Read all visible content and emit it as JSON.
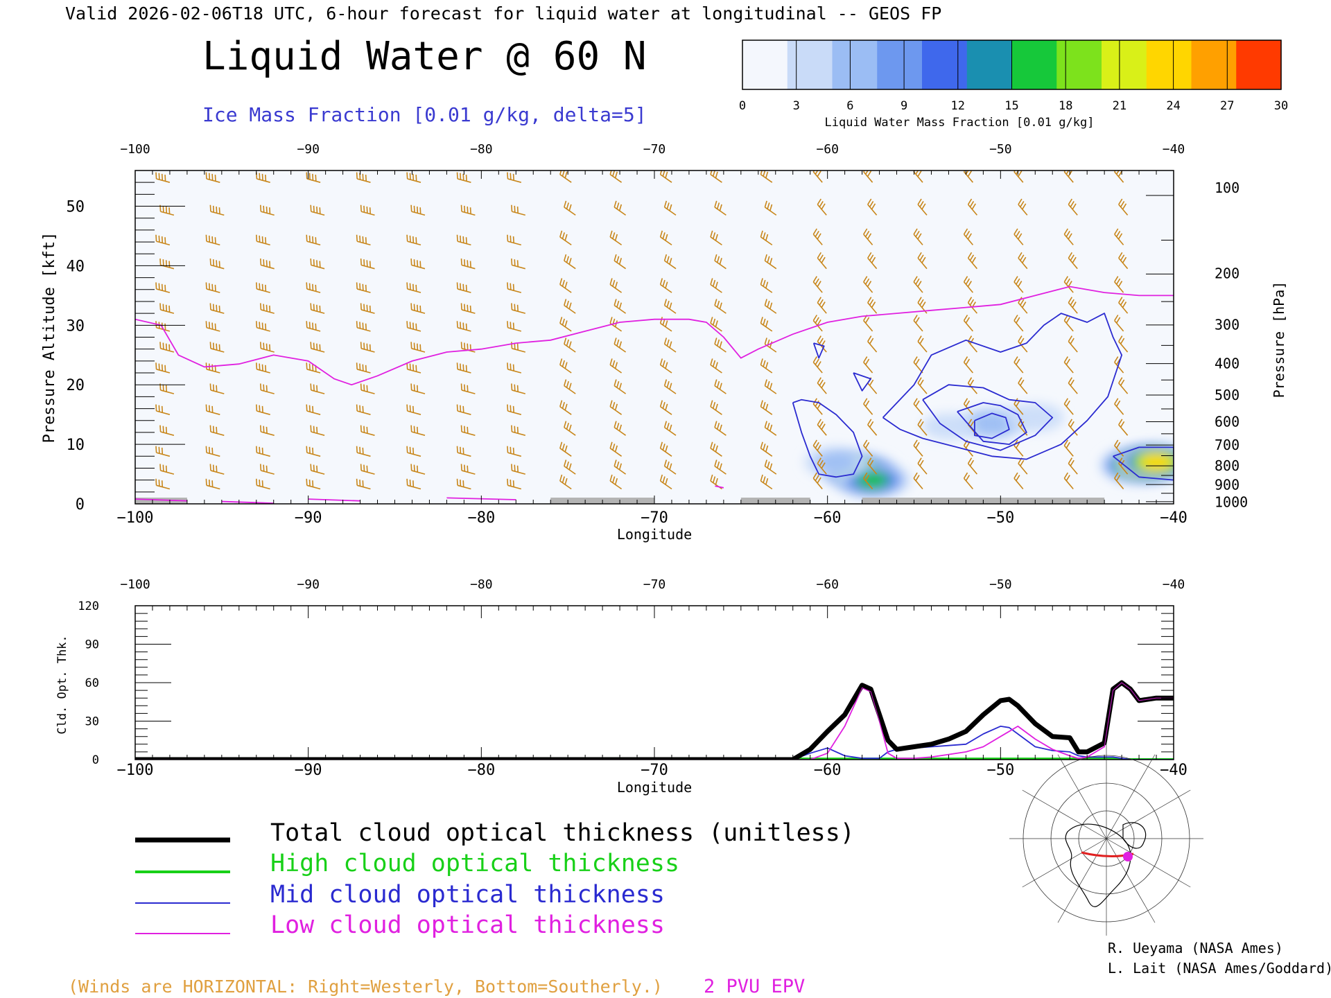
{
  "header": {
    "valid_line": "Valid 2026-02-06T18 UTC, 6-hour forecast for liquid water at longitudinal -- GEOS FP",
    "title": "Liquid Water @ 60 N",
    "subtitle": "Ice Mass Fraction [0.01 g/kg, delta=5]"
  },
  "colorbar": {
    "label": "Liquid Water Mass Fraction [0.01 g/kg]",
    "ticks": [
      "0",
      "3",
      "6",
      "9",
      "12",
      "15",
      "18",
      "21",
      "24",
      "27",
      "30"
    ],
    "colors": [
      "#f4f7fd",
      "#c9dbf8",
      "#9bbdf4",
      "#6d98ef",
      "#3f68ec",
      "#1a8fb0",
      "#16c83a",
      "#7de21c",
      "#d9f018",
      "#ffd600",
      "#ffa000",
      "#ff3a00"
    ]
  },
  "colors": {
    "wind_barbs": "#c8861a",
    "ice_contours": "#2a2ad0",
    "pvu_line": "#e020e0",
    "total_line": "#000000",
    "high_line": "#18d018",
    "mid_line": "#2a2ad0",
    "low_line": "#e020e0",
    "ground": "#b4b4b4"
  },
  "chart_data": [
    {
      "type": "heatmap",
      "title": "Liquid Water @ 60 N",
      "xlabel": "Longitude",
      "ylabel": "Pressure Altitude [kft]",
      "y2label": "Pressure [hPa]",
      "xlim": [
        -100,
        -40
      ],
      "ylim": [
        0,
        56
      ],
      "x_ticks": [
        "-100",
        "-90",
        "-80",
        "-70",
        "-60",
        "-50",
        "-40"
      ],
      "top_ticks": [
        "-100",
        "-90",
        "-80",
        "-70",
        "-60",
        "-50",
        "-40"
      ],
      "y_ticks": [
        "0",
        "10",
        "20",
        "30",
        "40",
        "50"
      ],
      "pressure_ticks": [
        {
          "label": "100",
          "kft": 53.1
        },
        {
          "label": "200",
          "kft": 38.7
        },
        {
          "label": "300",
          "kft": 30.1
        },
        {
          "label": "400",
          "kft": 23.6
        },
        {
          "label": "500",
          "kft": 18.3
        },
        {
          "label": "600",
          "kft": 13.8
        },
        {
          "label": "700",
          "kft": 9.9
        },
        {
          "label": "800",
          "kft": 6.4
        },
        {
          "label": "900",
          "kft": 3.2
        },
        {
          "label": "1000",
          "kft": 0.3
        }
      ],
      "liquid_water_blobs": [
        {
          "lon": -58.2,
          "kft": 5.5,
          "peak": 20
        },
        {
          "lon": -57.4,
          "kft": 4.0,
          "peak": 16
        },
        {
          "lon": -59.5,
          "kft": 7.0,
          "peak": 6
        },
        {
          "lon": -50.5,
          "kft": 13.5,
          "peak": 8
        },
        {
          "lon": -48.0,
          "kft": 14.5,
          "peak": 4
        },
        {
          "lon": -53.0,
          "kft": 13.0,
          "peak": 3
        },
        {
          "lon": -42.0,
          "kft": 6.5,
          "peak": 24
        },
        {
          "lon": -41.0,
          "kft": 7.0,
          "peak": 26
        }
      ],
      "ice_contours": [
        {
          "level": 5,
          "lon": [
            -62.0,
            -61.5,
            -60.5,
            -59.5,
            -58.5,
            -58.0,
            -58.5,
            -59.5,
            -60.5,
            -61.0,
            -61.5,
            -62.0
          ],
          "kft": [
            17.0,
            17.5,
            17.0,
            15.0,
            12.0,
            8.0,
            5.0,
            4.5,
            5.0,
            8.0,
            12.0,
            17.0
          ]
        },
        {
          "level": 5,
          "lon": [
            -56.8,
            -55.0,
            -54.0,
            -52.0,
            -50.0,
            -48.5,
            -47.5,
            -46.5,
            -45.0,
            -44.0,
            -43.5,
            -43.0,
            -43.8,
            -45.0,
            -46.5,
            -48.5,
            -50.5,
            -52.5,
            -54.5,
            -55.8,
            -56.8
          ],
          "kft": [
            14.5,
            20.0,
            25.0,
            27.5,
            25.5,
            27.0,
            30.0,
            32.0,
            30.5,
            32.0,
            28.0,
            25.0,
            18.0,
            14.0,
            10.0,
            7.5,
            8.0,
            9.5,
            11.0,
            12.5,
            14.5
          ]
        },
        {
          "level": 10,
          "lon": [
            -54.5,
            -53.0,
            -51.0,
            -49.5,
            -48.0,
            -47.0,
            -48.0,
            -50.0,
            -52.0,
            -53.5,
            -54.5
          ],
          "kft": [
            17.5,
            20.0,
            19.5,
            17.5,
            17.0,
            14.5,
            11.5,
            9.0,
            10.5,
            13.5,
            17.5
          ]
        },
        {
          "level": 15,
          "lon": [
            -52.5,
            -51.0,
            -50.0,
            -49.0,
            -48.5,
            -49.5,
            -51.0,
            -52.5
          ],
          "kft": [
            15.5,
            17.0,
            16.5,
            15.0,
            12.0,
            10.0,
            10.5,
            15.5
          ]
        },
        {
          "level": 20,
          "lon": [
            -51.5,
            -50.5,
            -49.7,
            -49.5,
            -50.5,
            -51.5,
            -51.5
          ],
          "kft": [
            14.0,
            15.2,
            14.5,
            12.5,
            11.0,
            11.5,
            14.0
          ]
        },
        {
          "level": 5,
          "lon": [
            -58.5,
            -57.5,
            -58.0,
            -58.5
          ],
          "kft": [
            22.0,
            21.0,
            19.0,
            22.0
          ]
        },
        {
          "level": 5,
          "lon": [
            -60.8,
            -60.2,
            -60.5,
            -60.8
          ],
          "kft": [
            27.0,
            26.5,
            24.5,
            27.0
          ]
        },
        {
          "level": 5,
          "lon": [
            -43.5,
            -42.0,
            -40.0,
            -40.0,
            -42.0,
            -43.5
          ],
          "kft": [
            8.0,
            9.5,
            9.5,
            4.0,
            4.5,
            8.0
          ]
        }
      ],
      "pvu_2_kft": {
        "lon": [
          -100,
          -98.5,
          -97.5,
          -96,
          -94,
          -92,
          -90,
          -88.5,
          -87.5,
          -86,
          -84,
          -82,
          -80,
          -78,
          -76,
          -74,
          -72,
          -70,
          -68,
          -67,
          -66,
          -65,
          -64,
          -62,
          -60,
          -58,
          -56,
          -54,
          -52,
          -50,
          -48,
          -46,
          -44,
          -42,
          -40
        ],
        "kft": [
          31,
          30,
          25,
          23,
          23.5,
          25,
          24,
          21,
          20,
          21.5,
          24,
          25.5,
          26,
          27,
          27.5,
          29,
          30.5,
          31,
          31,
          30.5,
          28,
          24.5,
          26,
          28.5,
          30.5,
          31.5,
          32,
          32.5,
          33,
          33.5,
          35,
          36.5,
          35.5,
          35,
          35
        ]
      },
      "ground_segments_lon": [
        [
          -100,
          -97
        ],
        [
          -76,
          -70
        ],
        [
          -65,
          -61
        ],
        [
          -58,
          -44
        ]
      ],
      "legend_wind": "(Winds are HORIZONTAL: Right=Westerly, Bottom=Southerly.)",
      "legend_pvu": "2 PVU EPV"
    },
    {
      "type": "line",
      "xlabel": "Longitude",
      "ylabel": "Cld. Opt. Thk.",
      "xlim": [
        -100,
        -40
      ],
      "ylim": [
        0,
        120
      ],
      "x_ticks": [
        "-100",
        "-90",
        "-80",
        "-70",
        "-60",
        "-50",
        "-40"
      ],
      "top_ticks": [
        "-100",
        "-90",
        "-80",
        "-70",
        "-60",
        "-50",
        "-40"
      ],
      "y_ticks": [
        "0",
        "30",
        "60",
        "90",
        "120"
      ],
      "x": [
        -100,
        -80,
        -70,
        -65,
        -62,
        -61,
        -60,
        -59,
        -58,
        -57.5,
        -57,
        -56.5,
        -56,
        -55,
        -54,
        -53,
        -52,
        -51,
        -50,
        -49.5,
        -49,
        -48,
        -47,
        -46,
        -45.5,
        -45,
        -44,
        -43.5,
        -43,
        -42.5,
        -42,
        -41,
        -40
      ],
      "series": [
        {
          "name": "Total cloud optical thickness (unitless)",
          "color": "#000000",
          "values": [
            0,
            0,
            0,
            0,
            0,
            8,
            22,
            35,
            58,
            55,
            35,
            15,
            8,
            10,
            12,
            16,
            22,
            35,
            46,
            47,
            42,
            28,
            18,
            17,
            6,
            6,
            13,
            55,
            60,
            55,
            46,
            48,
            48
          ]
        },
        {
          "name": "High cloud optical thickness",
          "color": "#18d018",
          "values": [
            0.5,
            0.5,
            0.5,
            0.5,
            0.5,
            0.5,
            0.5,
            0.5,
            0.5,
            0.5,
            0.5,
            0.5,
            0.5,
            0.5,
            0.5,
            0.5,
            0.5,
            0.5,
            0.5,
            0.5,
            0.5,
            0.5,
            0.5,
            0.5,
            0.5,
            0.5,
            0.5,
            0.5,
            0,
            0,
            0,
            0,
            0
          ]
        },
        {
          "name": "Mid cloud optical thickness",
          "color": "#2a2ad0",
          "values": [
            0,
            0,
            0,
            0,
            0,
            5,
            9,
            3,
            1,
            1,
            1,
            6,
            8,
            9,
            10,
            11,
            12,
            20,
            26,
            25,
            20,
            10,
            7,
            6,
            3,
            2,
            2,
            2,
            1,
            0,
            0,
            0,
            0
          ]
        },
        {
          "name": "Low cloud optical thickness",
          "color": "#e020e0",
          "values": [
            0,
            0,
            0,
            0,
            0,
            0,
            5,
            26,
            56,
            53,
            30,
            5,
            1,
            1,
            2,
            4,
            6,
            10,
            18,
            22,
            26,
            16,
            8,
            3,
            1,
            2,
            10,
            54,
            60,
            55,
            46,
            48,
            48
          ]
        }
      ]
    }
  ],
  "credits": [
    "R. Ueyama (NASA Ames)",
    "L. Lait (NASA Ames/Goddard)"
  ],
  "map_inset": {
    "marker_color": "#e020e0",
    "track_color": "#e02020"
  }
}
